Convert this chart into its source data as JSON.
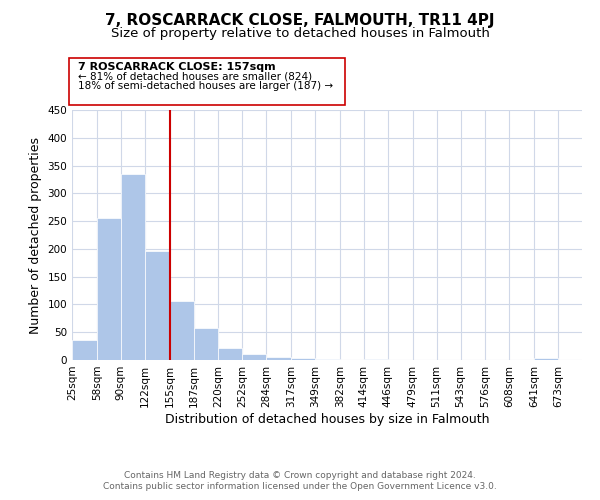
{
  "title": "7, ROSCARRACK CLOSE, FALMOUTH, TR11 4PJ",
  "subtitle": "Size of property relative to detached houses in Falmouth",
  "xlabel": "Distribution of detached houses by size in Falmouth",
  "ylabel": "Number of detached properties",
  "bar_left_edges": [
    25,
    58,
    90,
    122,
    155,
    187,
    220,
    252,
    284,
    317,
    349,
    382,
    414,
    446,
    479,
    511,
    543,
    576,
    608,
    641
  ],
  "bar_heights": [
    36,
    255,
    335,
    197,
    106,
    57,
    21,
    11,
    5,
    3,
    2,
    0,
    2,
    0,
    0,
    0,
    0,
    0,
    0,
    3
  ],
  "bar_widths": [
    33,
    32,
    32,
    33,
    32,
    33,
    32,
    32,
    33,
    32,
    33,
    32,
    32,
    33,
    32,
    32,
    33,
    32,
    33,
    32
  ],
  "bar_color": "#aec6e8",
  "bar_edge_color": "#ffffff",
  "tick_labels": [
    "25sqm",
    "58sqm",
    "90sqm",
    "122sqm",
    "155sqm",
    "187sqm",
    "220sqm",
    "252sqm",
    "284sqm",
    "317sqm",
    "349sqm",
    "382sqm",
    "414sqm",
    "446sqm",
    "479sqm",
    "511sqm",
    "543sqm",
    "576sqm",
    "608sqm",
    "641sqm",
    "673sqm"
  ],
  "ylim": [
    0,
    450
  ],
  "yticks": [
    0,
    50,
    100,
    150,
    200,
    250,
    300,
    350,
    400,
    450
  ],
  "xlim_left": 25,
  "xlim_right": 705,
  "vline_x": 155,
  "vline_color": "#cc0000",
  "annotation_title": "7 ROSCARRACK CLOSE: 157sqm",
  "annotation_line1": "← 81% of detached houses are smaller (824)",
  "annotation_line2": "18% of semi-detached houses are larger (187) →",
  "footer_line1": "Contains HM Land Registry data © Crown copyright and database right 2024.",
  "footer_line2": "Contains public sector information licensed under the Open Government Licence v3.0.",
  "bg_color": "#ffffff",
  "grid_color": "#d0d8e8",
  "title_fontsize": 11,
  "subtitle_fontsize": 9.5,
  "axis_label_fontsize": 9,
  "tick_fontsize": 7.5,
  "annotation_fontsize": 8,
  "footer_fontsize": 6.5
}
